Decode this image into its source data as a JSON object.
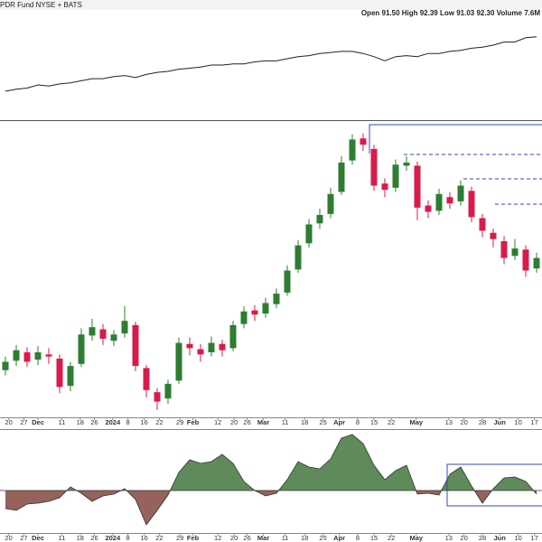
{
  "header": {
    "title": "PDR Fund NYSE + BATS",
    "quote": "Open 91.50  High 92.39  Low 91.03  92.30  Volume 7.6M"
  },
  "chart_data": [
    {
      "type": "line",
      "color": "#222222",
      "ylim": [
        0,
        100
      ],
      "values": [
        25,
        27,
        28,
        31,
        30,
        32,
        33,
        35,
        37,
        37,
        39,
        40,
        38,
        41,
        43,
        44,
        46,
        47,
        48,
        50,
        50,
        51,
        51,
        53,
        54,
        54,
        56,
        58,
        59,
        61,
        62,
        63,
        63,
        61,
        58,
        54,
        58,
        59,
        58,
        61,
        61,
        63,
        64,
        66,
        67,
        69,
        72,
        72,
        76,
        77
      ]
    },
    {
      "type": "candlestick",
      "up_color": "#2e7d32",
      "down_color": "#d81b4a",
      "xlim": [
        -0.5,
        49.5
      ],
      "ylim": [
        68,
        96
      ],
      "xticks": [
        {
          "value": 0.3,
          "label": "20"
        },
        {
          "value": 1.7,
          "label": "27"
        },
        {
          "value": 3,
          "label": "Dec"
        },
        {
          "value": 5.2,
          "label": "11"
        },
        {
          "value": 6.9,
          "label": "18"
        },
        {
          "value": 8.2,
          "label": "26"
        },
        {
          "value": 9.9,
          "label": "2024"
        },
        {
          "value": 11.3,
          "label": "8"
        },
        {
          "value": 12.8,
          "label": "16"
        },
        {
          "value": 14.2,
          "label": "22"
        },
        {
          "value": 16.1,
          "label": "29"
        },
        {
          "value": 17.3,
          "label": "Feb"
        },
        {
          "value": 19.6,
          "label": "12"
        },
        {
          "value": 21.1,
          "label": "20"
        },
        {
          "value": 22.3,
          "label": "26"
        },
        {
          "value": 23.8,
          "label": "Mar"
        },
        {
          "value": 25.8,
          "label": "11"
        },
        {
          "value": 27.6,
          "label": "18"
        },
        {
          "value": 29.3,
          "label": "25"
        },
        {
          "value": 30.8,
          "label": "Apr"
        },
        {
          "value": 32.5,
          "label": "8"
        },
        {
          "value": 34,
          "label": "15"
        },
        {
          "value": 35.6,
          "label": "22"
        },
        {
          "value": 37.9,
          "label": "May"
        },
        {
          "value": 40.9,
          "label": "13"
        },
        {
          "value": 42.3,
          "label": "20"
        },
        {
          "value": 44,
          "label": "28"
        },
        {
          "value": 45.6,
          "label": "Jun"
        },
        {
          "value": 47.3,
          "label": "10"
        },
        {
          "value": 48.8,
          "label": "17"
        }
      ],
      "open": [
        72.5,
        73.4,
        74.2,
        73.5,
        74.0,
        73.6,
        71.0,
        73.1,
        75.8,
        76.4,
        75.3,
        76.0,
        76.8,
        72.7,
        70.4,
        69.8,
        71.5,
        75.0,
        74.5,
        74.2,
        75.0,
        74.6,
        76.9,
        78.2,
        77.9,
        78.8,
        79.9,
        82.1,
        84.6,
        86.5,
        87.4,
        89.5,
        92.5,
        94.6,
        93.6,
        90.3,
        89.9,
        92.0,
        92.0,
        88.2,
        87.7,
        89.0,
        88.6,
        89.6,
        87.0,
        85.6,
        84.8,
        83.4,
        84.0,
        82.2
      ],
      "high": [
        73.8,
        74.9,
        74.7,
        74.8,
        74.6,
        74.0,
        73.3,
        76.5,
        77.4,
        76.9,
        76.3,
        78.6,
        77.1,
        73.0,
        70.8,
        71.6,
        75.6,
        75.6,
        75.0,
        75.7,
        75.4,
        77.2,
        78.6,
        78.7,
        79.4,
        80.3,
        82.5,
        84.9,
        86.9,
        87.9,
        89.9,
        92.9,
        95.0,
        95.1,
        94.0,
        90.8,
        92.6,
        92.9,
        92.4,
        88.7,
        89.8,
        89.5,
        90.6,
        90.0,
        87.4,
        86.0,
        85.3,
        85.0,
        84.4,
        83.7
      ],
      "low": [
        72.0,
        72.9,
        72.8,
        73.0,
        73.1,
        70.3,
        70.5,
        72.8,
        75.3,
        74.9,
        74.8,
        75.6,
        72.4,
        69.9,
        68.7,
        69.3,
        71.2,
        73.9,
        73.3,
        73.8,
        73.8,
        74.3,
        76.5,
        77.2,
        77.5,
        78.4,
        79.6,
        81.8,
        84.2,
        86.0,
        87.0,
        89.2,
        92.1,
        93.4,
        89.6,
        89.0,
        89.5,
        91.5,
        86.8,
        87.0,
        87.3,
        87.9,
        88.2,
        86.6,
        85.2,
        84.2,
        82.6,
        83.0,
        81.4,
        81.8
      ],
      "close": [
        73.3,
        74.4,
        73.3,
        74.2,
        73.8,
        70.9,
        72.9,
        75.9,
        76.6,
        75.5,
        75.9,
        77.2,
        72.9,
        70.6,
        69.5,
        71.2,
        75.1,
        74.6,
        74.0,
        75.1,
        74.4,
        76.8,
        78.1,
        77.8,
        78.9,
        79.8,
        82.0,
        84.4,
        86.4,
        87.3,
        89.3,
        92.3,
        94.5,
        94.0,
        90.1,
        89.7,
        92.1,
        92.3,
        88.0,
        87.6,
        89.3,
        88.4,
        90.1,
        87.1,
        85.8,
        85.0,
        83.2,
        84.1,
        82.0,
        83.2
      ]
    },
    {
      "type": "area",
      "up_color": "#5f8a5a",
      "down_color": "#96625c",
      "ylim": [
        -47,
        65
      ],
      "values": [
        -20,
        -22,
        -15,
        -14,
        -12,
        -8,
        4,
        -3,
        -12,
        -6,
        -4,
        2,
        -10,
        -38,
        -22,
        -5,
        20,
        34,
        30,
        32,
        40,
        30,
        10,
        0,
        -6,
        -3,
        12,
        32,
        26,
        24,
        35,
        58,
        62,
        52,
        28,
        12,
        22,
        28,
        -4,
        -3,
        -5,
        18,
        26,
        5,
        -14,
        2,
        14,
        15,
        10,
        -4
      ]
    }
  ]
}
